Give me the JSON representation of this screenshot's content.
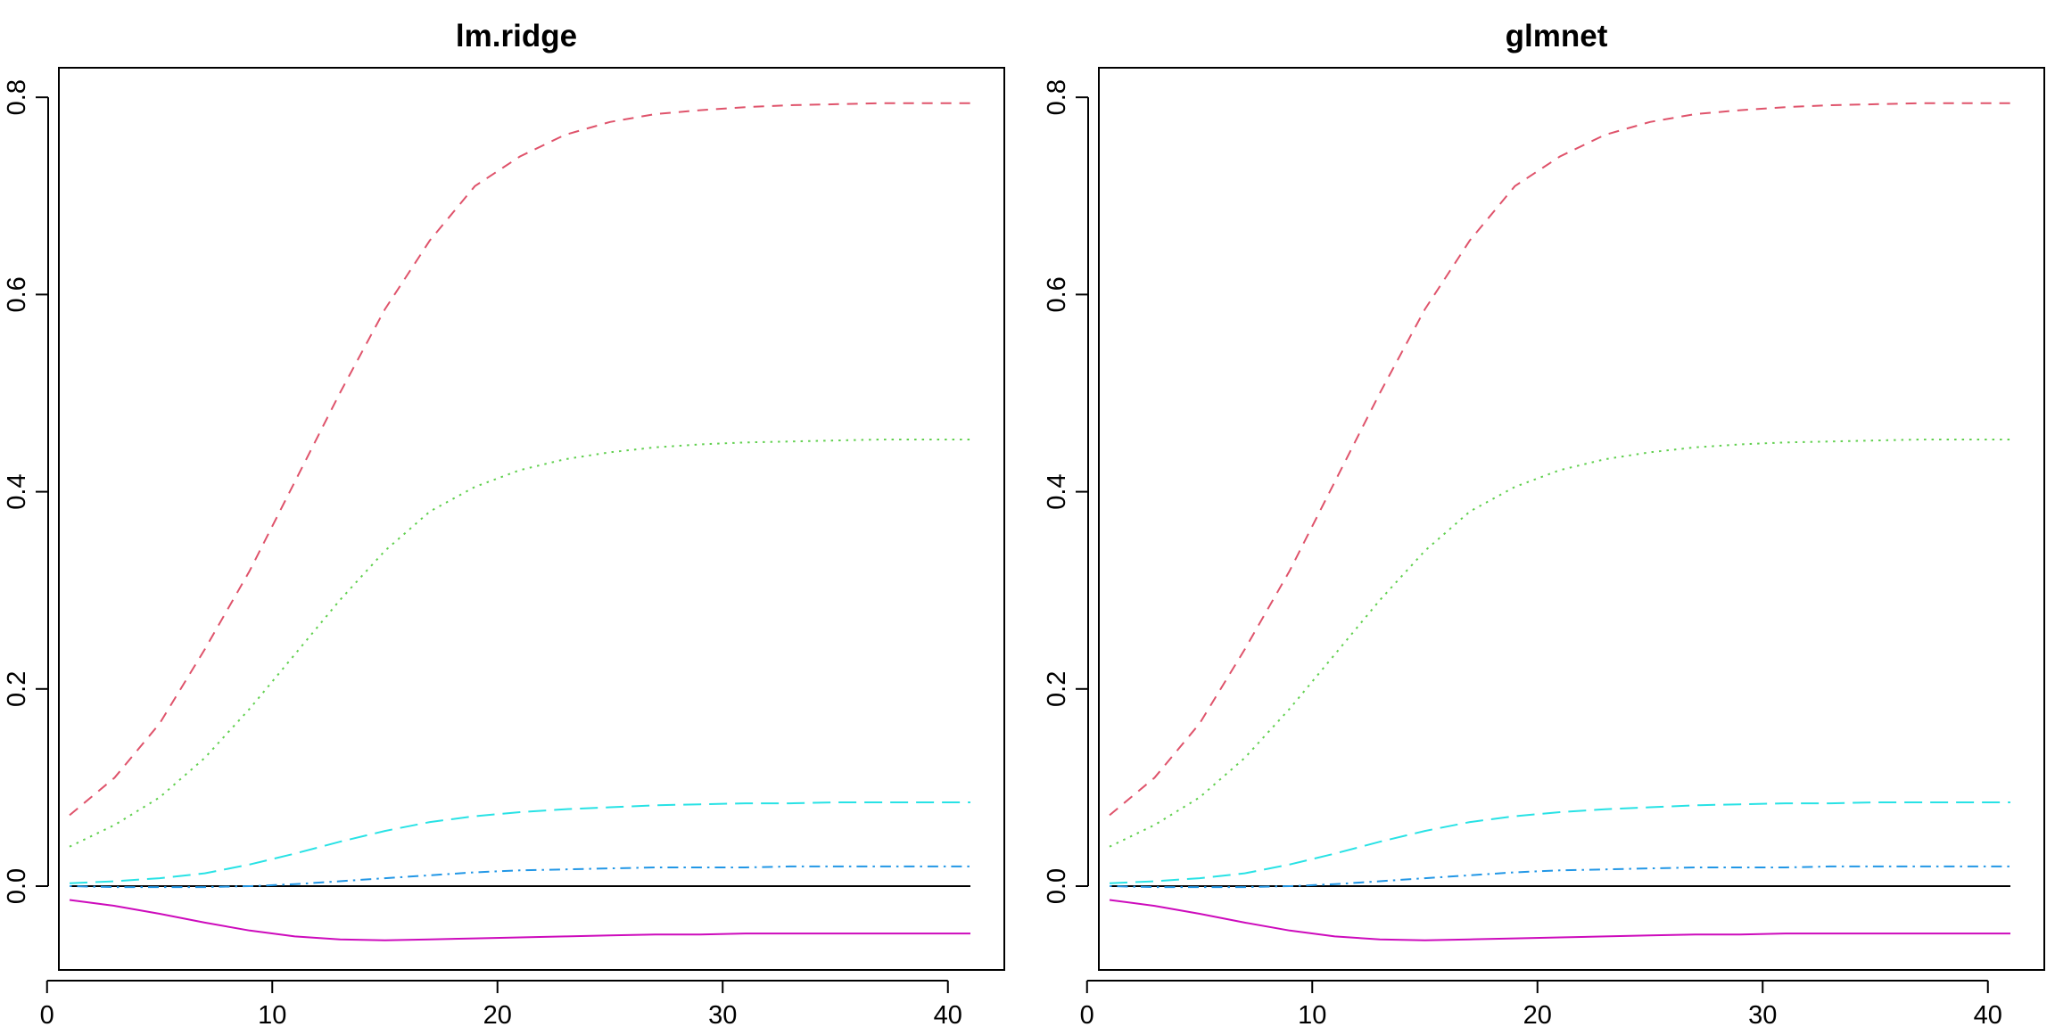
{
  "chart_data": [
    {
      "type": "line",
      "title": "lm.ridge",
      "xlabel": "",
      "ylabel": "",
      "xlim": [
        1,
        41
      ],
      "ylim": [
        -0.085,
        0.83
      ],
      "xticks": [
        0,
        10,
        20,
        30,
        40
      ],
      "yticks": [
        0.0,
        0.2,
        0.4,
        0.6,
        0.8
      ],
      "grid": false,
      "x": [
        1,
        3,
        5,
        7,
        9,
        11,
        13,
        15,
        17,
        19,
        21,
        23,
        25,
        27,
        29,
        31,
        33,
        35,
        37,
        39,
        41
      ],
      "series": [
        {
          "color": "#000000",
          "dash": "solid",
          "values": [
            0,
            0,
            0,
            0,
            0,
            0,
            0,
            0,
            0,
            0,
            0,
            0,
            0,
            0,
            0,
            0,
            0,
            0,
            0,
            0,
            0
          ]
        },
        {
          "color": "#DF536B",
          "dash": "dashed",
          "values": [
            0.072,
            0.11,
            0.165,
            0.24,
            0.32,
            0.41,
            0.5,
            0.585,
            0.655,
            0.71,
            0.74,
            0.762,
            0.775,
            0.783,
            0.787,
            0.79,
            0.792,
            0.793,
            0.794,
            0.794,
            0.794
          ]
        },
        {
          "color": "#61D04F",
          "dash": "dotted",
          "values": [
            0.04,
            0.062,
            0.09,
            0.13,
            0.18,
            0.235,
            0.29,
            0.34,
            0.38,
            0.405,
            0.422,
            0.433,
            0.44,
            0.445,
            0.448,
            0.45,
            0.451,
            0.452,
            0.453,
            0.453,
            0.453
          ]
        },
        {
          "color": "#2297E6",
          "dash": "dotdash",
          "values": [
            0,
            -0.001,
            -0.001,
            -0.001,
            0,
            0.002,
            0.005,
            0.008,
            0.011,
            0.014,
            0.016,
            0.017,
            0.018,
            0.019,
            0.019,
            0.019,
            0.02,
            0.02,
            0.02,
            0.02,
            0.02
          ]
        },
        {
          "color": "#28E2E5",
          "dash": "longdash",
          "values": [
            0.003,
            0.005,
            0.008,
            0.013,
            0.022,
            0.033,
            0.045,
            0.056,
            0.065,
            0.071,
            0.075,
            0.078,
            0.08,
            0.082,
            0.083,
            0.084,
            0.084,
            0.085,
            0.085,
            0.085,
            0.085
          ]
        },
        {
          "color": "#CD0BBC",
          "dash": "solid",
          "values": [
            -0.014,
            -0.02,
            -0.028,
            -0.037,
            -0.045,
            -0.051,
            -0.054,
            -0.055,
            -0.054,
            -0.053,
            -0.052,
            -0.051,
            -0.05,
            -0.049,
            -0.049,
            -0.048,
            -0.048,
            -0.048,
            -0.048,
            -0.048,
            -0.048
          ]
        }
      ]
    },
    {
      "type": "line",
      "title": "glmnet",
      "xlabel": "",
      "ylabel": "",
      "xlim": [
        1,
        41
      ],
      "ylim": [
        -0.085,
        0.83
      ],
      "xticks": [
        0,
        10,
        20,
        30,
        40
      ],
      "yticks": [
        0.0,
        0.2,
        0.4,
        0.6,
        0.8
      ],
      "grid": false,
      "x": [
        1,
        3,
        5,
        7,
        9,
        11,
        13,
        15,
        17,
        19,
        21,
        23,
        25,
        27,
        29,
        31,
        33,
        35,
        37,
        39,
        41
      ],
      "series": [
        {
          "color": "#000000",
          "dash": "solid",
          "values": [
            0,
            0,
            0,
            0,
            0,
            0,
            0,
            0,
            0,
            0,
            0,
            0,
            0,
            0,
            0,
            0,
            0,
            0,
            0,
            0,
            0
          ]
        },
        {
          "color": "#DF536B",
          "dash": "dashed",
          "values": [
            0.072,
            0.11,
            0.165,
            0.24,
            0.32,
            0.41,
            0.5,
            0.585,
            0.655,
            0.71,
            0.74,
            0.762,
            0.775,
            0.783,
            0.787,
            0.79,
            0.792,
            0.793,
            0.794,
            0.794,
            0.794
          ]
        },
        {
          "color": "#61D04F",
          "dash": "dotted",
          "values": [
            0.04,
            0.062,
            0.09,
            0.13,
            0.18,
            0.235,
            0.29,
            0.34,
            0.38,
            0.405,
            0.422,
            0.433,
            0.44,
            0.445,
            0.448,
            0.45,
            0.451,
            0.452,
            0.453,
            0.453,
            0.453
          ]
        },
        {
          "color": "#2297E6",
          "dash": "dotdash",
          "values": [
            0,
            -0.001,
            -0.001,
            -0.001,
            0,
            0.002,
            0.005,
            0.008,
            0.011,
            0.014,
            0.016,
            0.017,
            0.018,
            0.019,
            0.019,
            0.019,
            0.02,
            0.02,
            0.02,
            0.02,
            0.02
          ]
        },
        {
          "color": "#28E2E5",
          "dash": "longdash",
          "values": [
            0.003,
            0.005,
            0.008,
            0.013,
            0.022,
            0.033,
            0.045,
            0.056,
            0.065,
            0.071,
            0.075,
            0.078,
            0.08,
            0.082,
            0.083,
            0.084,
            0.084,
            0.085,
            0.085,
            0.085,
            0.085
          ]
        },
        {
          "color": "#CD0BBC",
          "dash": "solid",
          "values": [
            -0.014,
            -0.02,
            -0.028,
            -0.037,
            -0.045,
            -0.051,
            -0.054,
            -0.055,
            -0.054,
            -0.053,
            -0.052,
            -0.051,
            -0.05,
            -0.049,
            -0.049,
            -0.048,
            -0.048,
            -0.048,
            -0.048,
            -0.048,
            -0.048
          ]
        }
      ]
    }
  ]
}
